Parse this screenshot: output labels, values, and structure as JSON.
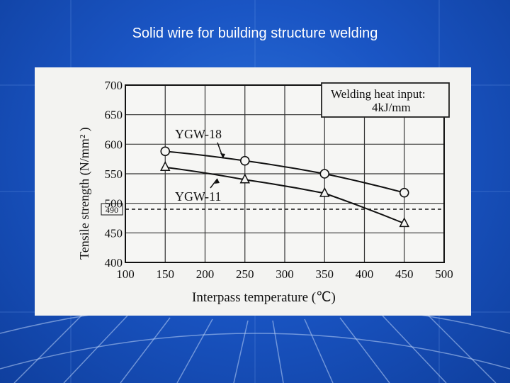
{
  "slide": {
    "title": "Solid wire for building structure welding"
  },
  "chart_data": {
    "type": "line",
    "xlabel": "Interpass temperature (℃)",
    "ylabel": "Tensile strength (N/mm² )",
    "xlim": [
      100,
      500
    ],
    "ylim": [
      400,
      700
    ],
    "x_ticks": [
      100,
      150,
      200,
      250,
      300,
      350,
      400,
      450,
      500
    ],
    "y_ticks": [
      400,
      450,
      500,
      550,
      600,
      650,
      700
    ],
    "grid": true,
    "reference_line": {
      "value": 490,
      "label": "490",
      "style": "dashed"
    },
    "annotation": {
      "line1": "Welding heat input:",
      "line2": "4kJ/mm"
    },
    "series": [
      {
        "name": "YGW-18",
        "marker": "circle",
        "x": [
          150,
          250,
          350,
          450
        ],
        "y": [
          588,
          572,
          550,
          518
        ]
      },
      {
        "name": "YGW-11",
        "marker": "triangle",
        "x": [
          150,
          250,
          350,
          450
        ],
        "y": [
          561,
          540,
          517,
          466
        ]
      }
    ]
  }
}
